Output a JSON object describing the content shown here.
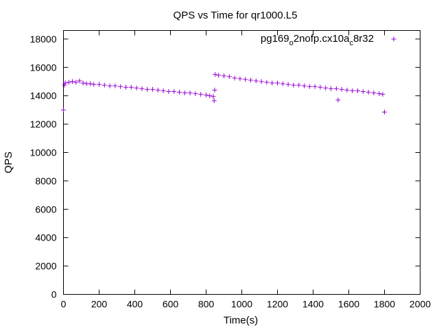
{
  "chart_data": {
    "type": "scatter",
    "title": "QPS vs Time for qr1000.L5",
    "xlabel": "Time(s)",
    "ylabel": "QPS",
    "xlim": [
      0,
      2000
    ],
    "ylim": [
      0,
      18600
    ],
    "xticks": [
      "0",
      "200",
      "400",
      "600",
      "800",
      "1000",
      "1200",
      "1400",
      "1600",
      "1800",
      "2000"
    ],
    "yticks": [
      "0",
      "2000",
      "4000",
      "6000",
      "8000",
      "10000",
      "12000",
      "14000",
      "16000",
      "18000"
    ],
    "grid": false,
    "legend_position": "top-right",
    "series": [
      {
        "name": "pg169_o2nofp.cx10a_c8r32",
        "legend_parts": [
          "pg169",
          "o",
          "2nofp.cx10a",
          "c",
          "8r32"
        ],
        "color": "#9400d3",
        "marker": "plus",
        "points": [
          [
            0,
            13000
          ],
          [
            5,
            14750
          ],
          [
            10,
            14900
          ],
          [
            30,
            14950
          ],
          [
            50,
            15000
          ],
          [
            70,
            14950
          ],
          [
            90,
            15050
          ],
          [
            110,
            14900
          ],
          [
            130,
            14850
          ],
          [
            150,
            14850
          ],
          [
            170,
            14800
          ],
          [
            200,
            14800
          ],
          [
            230,
            14750
          ],
          [
            260,
            14700
          ],
          [
            290,
            14700
          ],
          [
            320,
            14650
          ],
          [
            350,
            14600
          ],
          [
            380,
            14600
          ],
          [
            410,
            14550
          ],
          [
            440,
            14500
          ],
          [
            470,
            14450
          ],
          [
            500,
            14450
          ],
          [
            530,
            14400
          ],
          [
            560,
            14350
          ],
          [
            590,
            14300
          ],
          [
            620,
            14300
          ],
          [
            650,
            14250
          ],
          [
            680,
            14200
          ],
          [
            710,
            14200
          ],
          [
            740,
            14150
          ],
          [
            770,
            14100
          ],
          [
            800,
            14050
          ],
          [
            820,
            14000
          ],
          [
            840,
            13950
          ],
          [
            845,
            13650
          ],
          [
            848,
            14400
          ],
          [
            850,
            15500
          ],
          [
            870,
            15450
          ],
          [
            900,
            15400
          ],
          [
            930,
            15350
          ],
          [
            960,
            15250
          ],
          [
            990,
            15200
          ],
          [
            1020,
            15150
          ],
          [
            1050,
            15100
          ],
          [
            1080,
            15050
          ],
          [
            1110,
            15000
          ],
          [
            1140,
            14950
          ],
          [
            1170,
            14900
          ],
          [
            1200,
            14900
          ],
          [
            1230,
            14850
          ],
          [
            1260,
            14800
          ],
          [
            1290,
            14750
          ],
          [
            1320,
            14750
          ],
          [
            1350,
            14700
          ],
          [
            1380,
            14650
          ],
          [
            1410,
            14650
          ],
          [
            1440,
            14600
          ],
          [
            1470,
            14550
          ],
          [
            1500,
            14500
          ],
          [
            1530,
            14500
          ],
          [
            1540,
            13700
          ],
          [
            1560,
            14450
          ],
          [
            1590,
            14400
          ],
          [
            1620,
            14350
          ],
          [
            1650,
            14350
          ],
          [
            1680,
            14300
          ],
          [
            1710,
            14250
          ],
          [
            1740,
            14200
          ],
          [
            1770,
            14150
          ],
          [
            1790,
            14100
          ],
          [
            1800,
            12850
          ]
        ]
      }
    ]
  }
}
